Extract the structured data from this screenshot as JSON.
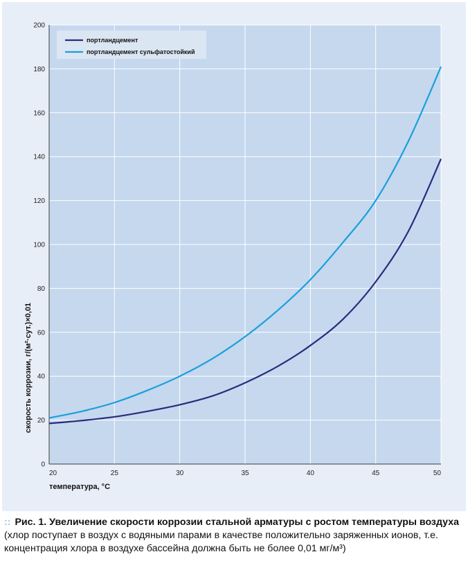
{
  "chart_data": {
    "type": "line",
    "xlabel": "температура, °С",
    "ylabel": "скорость коррозии, г/(м²·сут.)×0,01",
    "xlim": [
      20,
      50
    ],
    "ylim": [
      0,
      200
    ],
    "xticks": [
      "20",
      "25",
      "30",
      "35",
      "40",
      "45",
      "50"
    ],
    "yticks": [
      "0",
      "20",
      "40",
      "60",
      "80",
      "100",
      "120",
      "140",
      "160",
      "180",
      "200"
    ],
    "grid": true,
    "legend_position": "top-left",
    "series": [
      {
        "name": "портландцемент",
        "color": "#2b2a7c",
        "x": [
          20,
          22.5,
          25,
          27.5,
          30,
          32.5,
          35,
          37.5,
          40,
          42.5,
          45,
          47.5,
          50
        ],
        "y": [
          18.5,
          19.8,
          21.5,
          24,
          27,
          31,
          37,
          44.5,
          54,
          66,
          83,
          106,
          139
        ]
      },
      {
        "name": "портландцемент сульфатостойкий",
        "color": "#1a9fdb",
        "x": [
          20,
          22.5,
          25,
          27.5,
          30,
          32.5,
          35,
          37.5,
          40,
          42.5,
          45,
          47.5,
          50
        ],
        "y": [
          21,
          24,
          28,
          33.5,
          40,
          48,
          58,
          70,
          84,
          101,
          120,
          147,
          181
        ]
      }
    ]
  },
  "caption": {
    "bullet": "::",
    "title": "Рис. 1. Увеличение скорости коррозии стальной арматуры с ростом температуры воздуха",
    "text": " (хлор поступает в воздух с водяными парами в качестве положительно заряженных ионов, т.е. концентрация хлора в воздухе бассейна должна быть не более 0,01 мг/м³)"
  }
}
